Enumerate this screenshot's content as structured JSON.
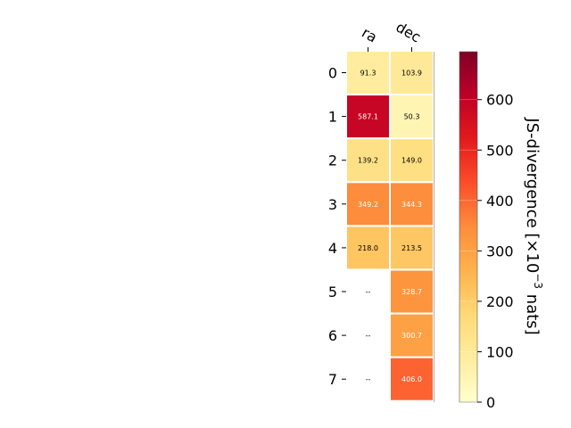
{
  "chart_data": {
    "type": "heatmap",
    "title": "",
    "columns": [
      "ra",
      "dec"
    ],
    "rows": [
      "0",
      "1",
      "2",
      "3",
      "4",
      "5",
      "6",
      "7"
    ],
    "values": [
      [
        91.3,
        103.9
      ],
      [
        587.1,
        50.3
      ],
      [
        139.2,
        149.0
      ],
      [
        349.2,
        344.3
      ],
      [
        218.0,
        213.5
      ],
      [
        null,
        328.7
      ],
      [
        null,
        300.7
      ],
      [
        null,
        406.0
      ]
    ],
    "cell_labels": [
      [
        "91.3",
        "103.9"
      ],
      [
        "587.1",
        "50.3"
      ],
      [
        "139.2",
        "149.0"
      ],
      [
        "349.2",
        "344.3"
      ],
      [
        "218.0",
        "213.5"
      ],
      [
        "--",
        "328.7"
      ],
      [
        "--",
        "300.7"
      ],
      [
        "--",
        "406.0"
      ]
    ],
    "colormap": "YlOrRd",
    "colorbar": {
      "label_main": "JS-divergence [×10",
      "label_exp": "−3",
      "label_unit": " nats]",
      "range": [
        0,
        695
      ],
      "ticks": [
        0,
        100,
        200,
        300,
        400,
        500,
        600
      ],
      "tick_labels": [
        "0",
        "100",
        "200",
        "300",
        "400",
        "500",
        "600"
      ]
    }
  }
}
